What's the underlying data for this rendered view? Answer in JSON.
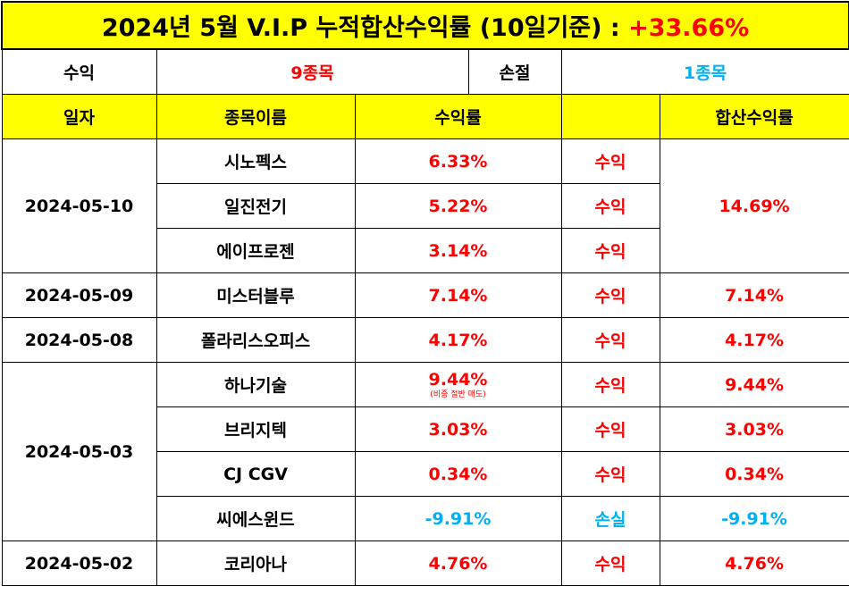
{
  "title": {
    "text": "2024년 5월 V.I.P 누적합산수익률 (10일기준) :",
    "value": "+33.66%"
  },
  "summary": {
    "profit_label": "수익",
    "profit_count": "9종목",
    "loss_label": "손절",
    "loss_count": "1종목"
  },
  "headers": [
    "일자",
    "종목이름",
    "수익률",
    "",
    "합산수익률"
  ],
  "groups": [
    {
      "date": "2024-05-10",
      "sum": "14.69%",
      "rows": [
        {
          "name": "시노펙스",
          "rate": "6.33%",
          "status": "수익"
        },
        {
          "name": "일진전기",
          "rate": "5.22%",
          "status": "수익"
        },
        {
          "name": "에이프로젠",
          "rate": "3.14%",
          "status": "수익"
        }
      ]
    },
    {
      "date": "2024-05-09",
      "rows": [
        {
          "name": "미스터블루",
          "rate": "7.14%",
          "status": "수익",
          "sum": "7.14%"
        }
      ]
    },
    {
      "date": "2024-05-08",
      "rows": [
        {
          "name": "폴라리스오피스",
          "rate": "4.17%",
          "status": "수익",
          "sum": "4.17%"
        }
      ]
    },
    {
      "date": "2024-05-03",
      "rows": [
        {
          "name": "하나기술",
          "rate": "9.44%",
          "note": "(비중 절반 매도)",
          "status": "수익",
          "sum": "9.44%"
        },
        {
          "name": "브리지텍",
          "rate": "3.03%",
          "status": "수익",
          "sum": "3.03%"
        },
        {
          "name": "CJ CGV",
          "rate": "0.34%",
          "status": "수익",
          "sum": "0.34%"
        },
        {
          "name": "씨에스윈드",
          "rate": "-9.91%",
          "status": "손실",
          "sum": "-9.91%"
        }
      ]
    },
    {
      "date": "2024-05-02",
      "rows": [
        {
          "name": "코리아나",
          "rate": "4.76%",
          "status": "수익",
          "sum": "4.76%"
        }
      ]
    }
  ],
  "colors": {
    "header_bg": "#ffff00",
    "profit": "#ff0000",
    "loss": "#00b0f0"
  }
}
